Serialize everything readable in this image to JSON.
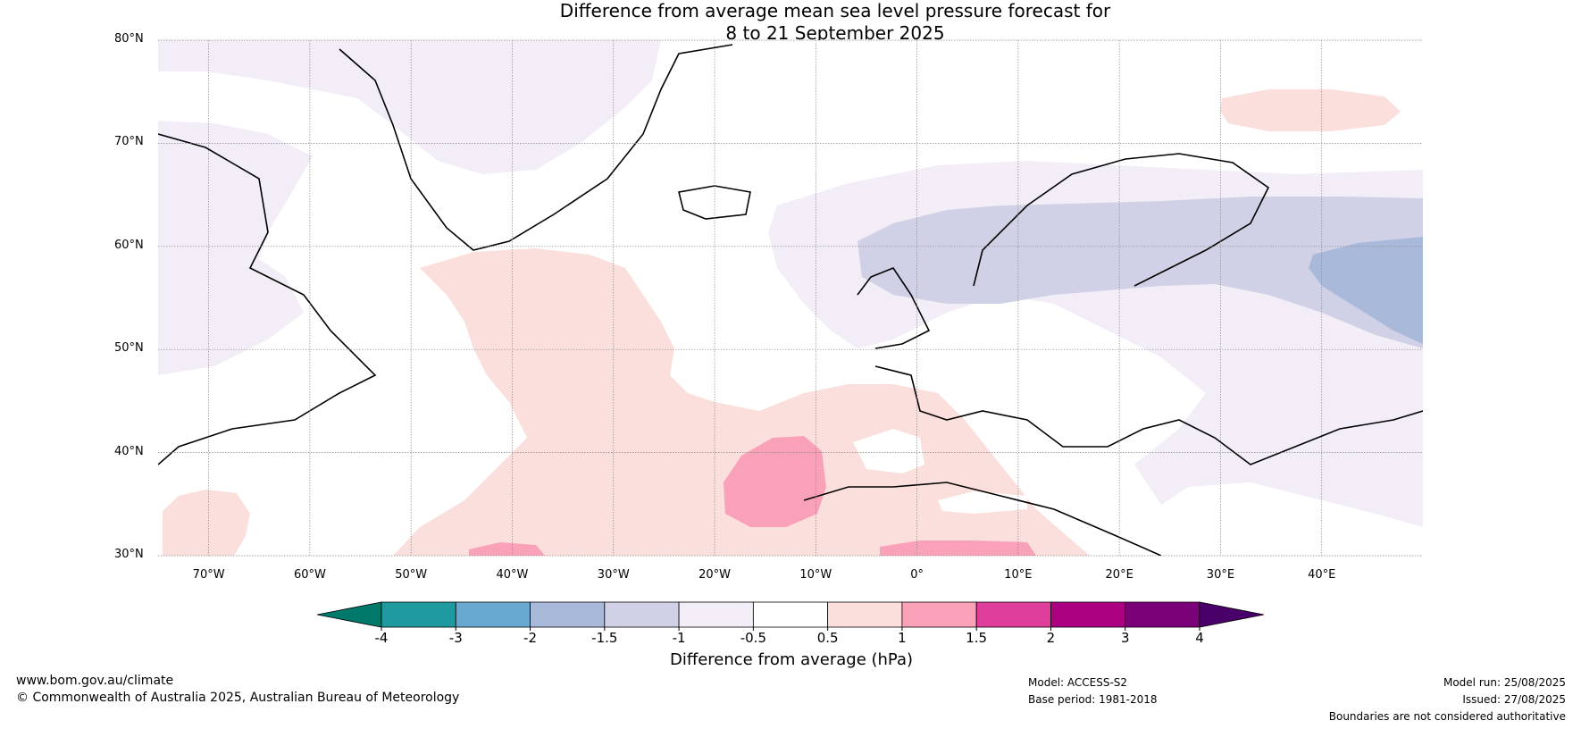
{
  "title": {
    "line1": "Difference from average mean sea level pressure forecast for",
    "line2": "8 to 21 September 2025"
  },
  "axes": {
    "lat_labels": [
      "80°N",
      "70°N",
      "60°N",
      "50°N",
      "40°N",
      "30°N"
    ],
    "lon_labels": [
      "70°W",
      "60°W",
      "50°W",
      "40°W",
      "30°W",
      "20°W",
      "10°W",
      "0°",
      "10°E",
      "20°E",
      "30°E",
      "40°E"
    ]
  },
  "colorbar": {
    "ticks": [
      "-4",
      "-3",
      "-2",
      "-1.5",
      "-1",
      "-0.5",
      "0.5",
      "1",
      "1.5",
      "2",
      "3",
      "4"
    ],
    "title": "Difference from average (hPa)",
    "colors": [
      "#00796b",
      "#1e9aa0",
      "#68a9d1",
      "#a9b9da",
      "#d0d1e6",
      "#f2edf6",
      "#ffffff",
      "#fbdfdc",
      "#f9a1b8",
      "#de3d9b",
      "#ac0181",
      "#7a0177",
      "#49006a"
    ]
  },
  "footer": {
    "website": "www.bom.gov.au/climate",
    "copyright": "© Commonwealth of Australia 2025, Australian Bureau of Meteorology",
    "model": "Model: ACCESS-S2",
    "base_period": "Base period: 1981-2018",
    "model_run": "Model run: 25/08/2025",
    "issued": "Issued: 27/08/2025",
    "disclaimer": "Boundaries are not considered authoritative"
  }
}
